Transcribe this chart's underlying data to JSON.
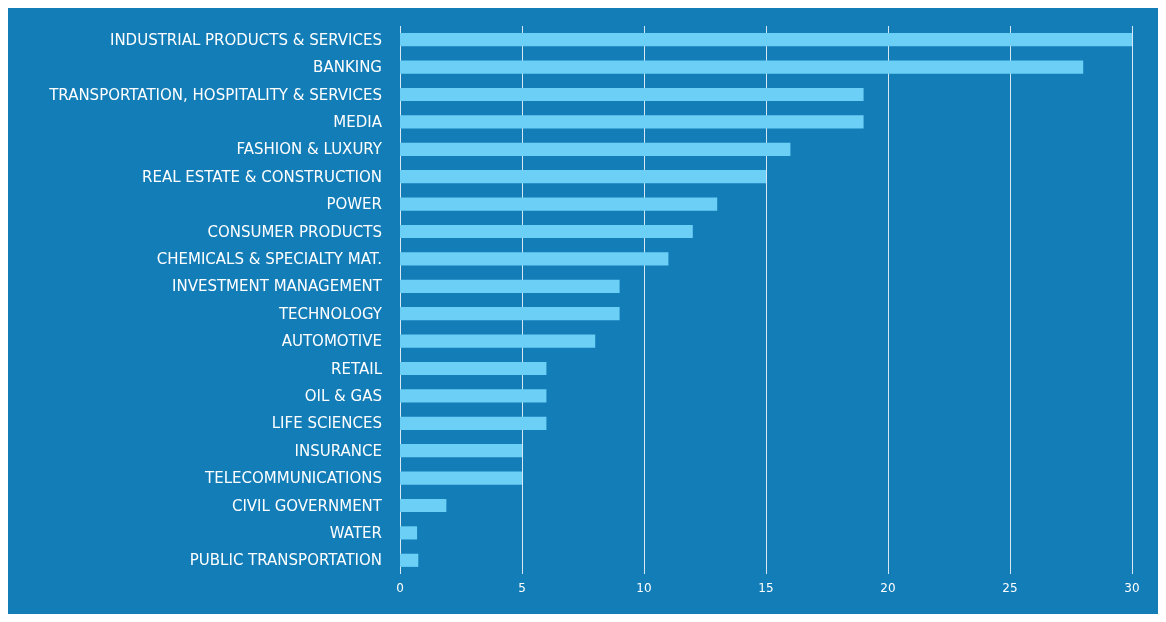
{
  "chart_data": {
    "type": "bar",
    "orientation": "horizontal",
    "categories": [
      "INDUSTRIAL PRODUCTS & SERVICES",
      "BANKING",
      "TRANSPORTATION, HOSPITALITY & SERVICES",
      "MEDIA",
      "FASHION & LUXURY",
      "REAL ESTATE & CONSTRUCTION",
      "POWER",
      "CONSUMER PRODUCTS",
      "CHEMICALS & SPECIALTY MAT.",
      "INVESTMENT MANAGEMENT",
      "TECHNOLOGY",
      "AUTOMOTIVE",
      "RETAIL",
      "OIL & GAS",
      "LIFE SCIENCES",
      "INSURANCE",
      "TELECOMMUNICATIONS",
      "CIVIL GOVERNMENT",
      "WATER",
      "PUBLIC TRANSPORTATION"
    ],
    "values": [
      30,
      28,
      19,
      19,
      16,
      15,
      13,
      12,
      11,
      9,
      9,
      8,
      6,
      6,
      6,
      5,
      5,
      1.9,
      0.7,
      0.75
    ],
    "color": "#6bcff6",
    "xlim": [
      0,
      30
    ],
    "xticks": [
      0,
      5,
      10,
      15,
      20,
      25,
      30
    ],
    "grid": "x"
  }
}
